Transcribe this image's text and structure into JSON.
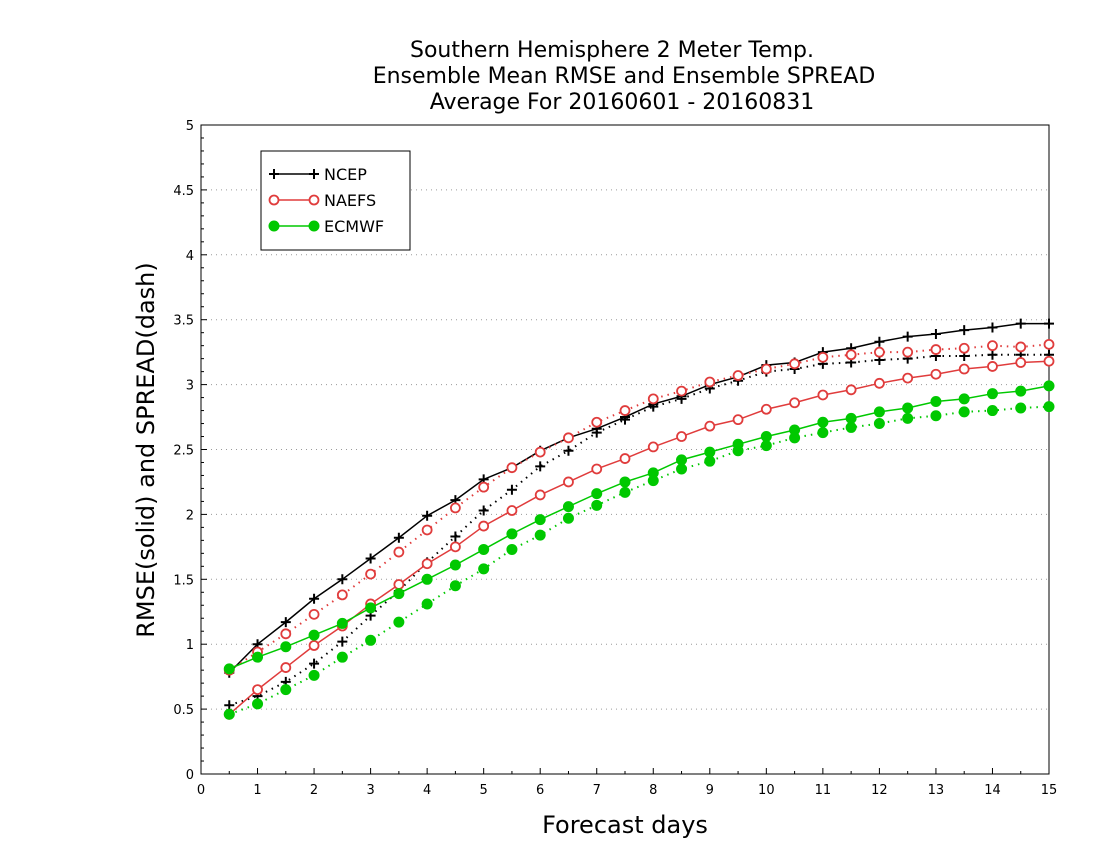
{
  "chart_data": {
    "type": "line",
    "title": [
      "Southern Hemisphere 2 Meter Temp.",
      "Ensemble Mean RMSE and Ensemble SPREAD",
      "Average For 20160601 - 20160831"
    ],
    "xlabel": "Forecast days",
    "ylabel": "RMSE(solid) and SPREAD(dash)",
    "xlim": [
      0,
      15
    ],
    "ylim": [
      0,
      5
    ],
    "xticks": [
      "0",
      "1",
      "2",
      "3",
      "4",
      "5",
      "6",
      "7",
      "8",
      "9",
      "10",
      "11",
      "12",
      "13",
      "14",
      "15"
    ],
    "yticks": [
      "0",
      "0.5",
      "1",
      "1.5",
      "2",
      "2.5",
      "3",
      "3.5",
      "4",
      "4.5",
      "5"
    ],
    "grid": "horizontal dotted",
    "legend_position": "top-left",
    "x": [
      0.5,
      1,
      1.5,
      2,
      2.5,
      3,
      3.5,
      4,
      4.5,
      5,
      5.5,
      6,
      6.5,
      7,
      7.5,
      8,
      8.5,
      9,
      9.5,
      10,
      10.5,
      11,
      11.5,
      12,
      12.5,
      13,
      13.5,
      14,
      14.5,
      15
    ],
    "series": [
      {
        "name": "NCEP",
        "metric": "RMSE",
        "line_style": "solid",
        "color": "#000000",
        "marker": "plus",
        "values": [
          0.78,
          1.0,
          1.17,
          1.35,
          1.5,
          1.66,
          1.82,
          1.99,
          2.11,
          2.27,
          2.36,
          2.49,
          2.59,
          2.66,
          2.75,
          2.85,
          2.91,
          3.0,
          3.06,
          3.15,
          3.17,
          3.25,
          3.28,
          3.33,
          3.37,
          3.39,
          3.42,
          3.44,
          3.47,
          3.47
        ]
      },
      {
        "name": "NCEP",
        "metric": "SPREAD",
        "line_style": "dotted",
        "color": "#000000",
        "marker": "plus",
        "values": [
          0.53,
          0.6,
          0.71,
          0.85,
          1.02,
          1.22,
          1.41,
          1.63,
          1.83,
          2.03,
          2.19,
          2.37,
          2.49,
          2.63,
          2.73,
          2.83,
          2.89,
          2.97,
          3.03,
          3.1,
          3.12,
          3.16,
          3.17,
          3.19,
          3.2,
          3.22,
          3.22,
          3.23,
          3.23,
          3.23
        ]
      },
      {
        "name": "NAEFS",
        "metric": "RMSE",
        "line_style": "solid",
        "color": "#e03c3c",
        "marker": "open-circle",
        "values": [
          0.46,
          0.65,
          0.82,
          0.99,
          1.14,
          1.31,
          1.46,
          1.62,
          1.75,
          1.91,
          2.03,
          2.15,
          2.25,
          2.35,
          2.43,
          2.52,
          2.6,
          2.68,
          2.73,
          2.81,
          2.86,
          2.92,
          2.96,
          3.01,
          3.05,
          3.08,
          3.12,
          3.14,
          3.17,
          3.18
        ]
      },
      {
        "name": "NAEFS",
        "metric": "SPREAD",
        "line_style": "dotted",
        "color": "#e03c3c",
        "marker": "open-circle",
        "values": [
          0.8,
          0.94,
          1.08,
          1.23,
          1.38,
          1.54,
          1.71,
          1.88,
          2.05,
          2.21,
          2.36,
          2.48,
          2.59,
          2.71,
          2.8,
          2.89,
          2.95,
          3.02,
          3.07,
          3.12,
          3.16,
          3.21,
          3.23,
          3.25,
          3.25,
          3.27,
          3.28,
          3.3,
          3.29,
          3.31
        ]
      },
      {
        "name": "ECMWF",
        "metric": "RMSE",
        "line_style": "solid",
        "color": "#00c800",
        "marker": "filled-circle",
        "values": [
          0.81,
          0.9,
          0.98,
          1.07,
          1.16,
          1.28,
          1.39,
          1.5,
          1.61,
          1.73,
          1.85,
          1.96,
          2.06,
          2.16,
          2.25,
          2.32,
          2.42,
          2.48,
          2.54,
          2.6,
          2.65,
          2.71,
          2.74,
          2.79,
          2.82,
          2.87,
          2.89,
          2.93,
          2.95,
          2.99
        ]
      },
      {
        "name": "ECMWF",
        "metric": "SPREAD",
        "line_style": "dotted",
        "color": "#00c800",
        "marker": "filled-circle",
        "values": [
          0.46,
          0.54,
          0.65,
          0.76,
          0.9,
          1.03,
          1.17,
          1.31,
          1.45,
          1.58,
          1.73,
          1.84,
          1.97,
          2.07,
          2.17,
          2.26,
          2.35,
          2.41,
          2.49,
          2.53,
          2.59,
          2.63,
          2.67,
          2.7,
          2.74,
          2.76,
          2.79,
          2.8,
          2.82,
          2.83
        ]
      }
    ],
    "legend": [
      "NCEP",
      "NAEFS",
      "ECMWF"
    ]
  }
}
